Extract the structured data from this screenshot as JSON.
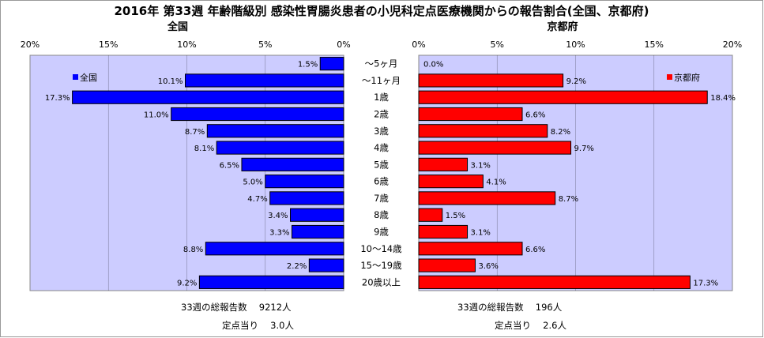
{
  "title": "2016年 第33週 年齢階級別 感染性胃腸炎患者の小児科定点医療機関からの報告割合(全国、京都府)",
  "colors": {
    "plot_bg": "#ccccff",
    "national_bar": "#0000ff",
    "kyoto_bar": "#ff0000",
    "grid": "#000000"
  },
  "chart_data": {
    "type": "bar",
    "orientation": "horizontal",
    "categories": [
      "～5ヶ月",
      "～11ヶ月",
      "1歳",
      "2歳",
      "3歳",
      "4歳",
      "5歳",
      "6歳",
      "7歳",
      "8歳",
      "9歳",
      "10～14歳",
      "15～19歳",
      "20歳以上"
    ],
    "x_ticks": [
      "20%",
      "15%",
      "10%",
      "5%",
      "0%",
      "0%",
      "5%",
      "10%",
      "15%",
      "20%"
    ],
    "xlim": [
      0,
      20
    ],
    "grid": true,
    "series": [
      {
        "name": "全国",
        "header": "全国",
        "legend": "全国",
        "values": [
          1.5,
          10.1,
          17.3,
          11.0,
          8.7,
          8.1,
          6.5,
          5.0,
          4.7,
          3.4,
          3.3,
          8.8,
          2.2,
          9.2
        ],
        "labels": [
          "1.5%",
          "10.1%",
          "17.3%",
          "11.0%",
          "8.7%",
          "8.1%",
          "6.5%",
          "5.0%",
          "4.7%",
          "3.4%",
          "3.3%",
          "8.8%",
          "2.2%",
          "9.2%"
        ],
        "legend_position": "top-left"
      },
      {
        "name": "京都府",
        "header": "京都府",
        "legend": "京都府",
        "values": [
          0.0,
          9.2,
          18.4,
          6.6,
          8.2,
          9.7,
          3.1,
          4.1,
          8.7,
          1.5,
          3.1,
          6.6,
          3.6,
          17.3
        ],
        "labels": [
          "0.0%",
          "9.2%",
          "18.4%",
          "6.6%",
          "8.2%",
          "9.7%",
          "3.1%",
          "4.1%",
          "8.7%",
          "1.5%",
          "3.1%",
          "6.6%",
          "3.6%",
          "17.3%"
        ],
        "legend_position": "top-right"
      }
    ]
  },
  "footer": {
    "national": {
      "total": "33週の総報告数　 9212人",
      "per_site": "定点当り　 3.0人"
    },
    "kyoto": {
      "total": "33週の総報告数　 196人",
      "per_site": "定点当り　 2.6人"
    }
  }
}
